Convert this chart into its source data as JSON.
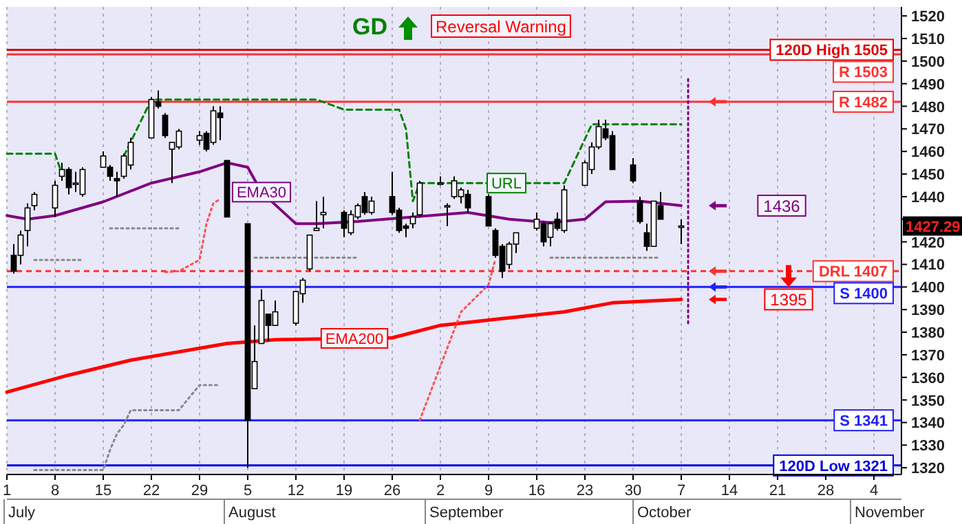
{
  "chart_data": {
    "type": "candlestick",
    "x": [
      "--07-02",
      "--07-03",
      "--07-04",
      "--07-05",
      "--07-08",
      "--07-09",
      "--07-10",
      "--07-11",
      "--07-12",
      "--07-15",
      "--07-16",
      "--07-17",
      "--07-18",
      "--07-19",
      "--07-22",
      "--07-23",
      "--07-24",
      "--07-25",
      "--07-26",
      "--07-29",
      "--07-30",
      "--07-31",
      "--08-01",
      "--08-02",
      "--08-05",
      "--08-06",
      "--08-07",
      "--08-08",
      "--08-09",
      "--08-12",
      "--08-13",
      "--08-14",
      "--08-15",
      "--08-16",
      "--08-19",
      "--08-20",
      "--08-21",
      "--08-22",
      "--08-23",
      "--08-26",
      "--08-27",
      "--08-28",
      "--08-29",
      "--08-30",
      "--09-02",
      "--09-03",
      "--09-04",
      "--09-05",
      "--09-06",
      "--09-09",
      "--09-10",
      "--09-11",
      "--09-12",
      "--09-13",
      "--09-16",
      "--09-17",
      "--09-18",
      "--09-19",
      "--09-20",
      "--09-23",
      "--09-24",
      "--09-25",
      "--09-26",
      "--09-27",
      "--09-30",
      "--10-01",
      "--10-02",
      "--10-03",
      "--10-04",
      "--10-07"
    ],
    "ohlc": [
      [
        1414,
        1419,
        1406,
        1407
      ],
      [
        1414,
        1425,
        1410,
        1423
      ],
      [
        1425,
        1437,
        1418,
        1435
      ],
      [
        1436,
        1442,
        1434,
        1441
      ],
      [
        1435,
        1447,
        1431,
        1445
      ],
      [
        1449,
        1455,
        1447,
        1452
      ],
      [
        1452,
        1453,
        1441,
        1444
      ],
      [
        1446,
        1451,
        1442,
        1446
      ],
      [
        1441,
        1453,
        1440,
        1452
      ],
      [
        1453,
        1460,
        1453,
        1458
      ],
      [
        1453,
        1454,
        1447,
        1449
      ],
      [
        1448,
        1451,
        1440,
        1447
      ],
      [
        1449,
        1459,
        1448,
        1458
      ],
      [
        1454,
        1466,
        1452,
        1464
      ],
      [
        1466,
        1484,
        1466,
        1483
      ],
      [
        1482,
        1487,
        1479,
        1480
      ],
      [
        1476,
        1477,
        1466,
        1467
      ],
      [
        1461,
        1464,
        1446,
        1464
      ],
      [
        1462,
        1470,
        1461,
        1469
      ],
      [
        1465,
        1469,
        1463,
        1467
      ],
      [
        1468,
        1469,
        1460,
        1461
      ],
      [
        1464,
        1480,
        1463,
        1478
      ],
      [
        1477,
        1480,
        1465,
        1475
      ],
      [
        1456,
        1456,
        1431,
        1431
      ],
      [
        1428,
        1428,
        1320,
        1341
      ],
      [
        1355,
        1383,
        1355,
        1367
      ],
      [
        1375,
        1399,
        1375,
        1394
      ],
      [
        1388,
        1388,
        1376,
        1383
      ],
      [
        1383,
        1394,
        1383,
        1389
      ],
      [
        1384,
        1398,
        1383,
        1398
      ],
      [
        1397,
        1404,
        1393,
        1403
      ],
      [
        1408,
        1423,
        1407,
        1423
      ],
      [
        1425,
        1438,
        1425,
        1426
      ],
      [
        1432,
        1440,
        1426,
        1433
      ],
      [
        1433,
        1434,
        1422,
        1426
      ],
      [
        1424,
        1434,
        1423,
        1432
      ],
      [
        1431,
        1437,
        1430,
        1436
      ],
      [
        1440,
        1442,
        1432,
        1433
      ],
      [
        1433,
        1440,
        1432,
        1438
      ],
      [
        1440,
        1451,
        1432,
        1433
      ],
      [
        1434,
        1435,
        1424,
        1425
      ],
      [
        1427,
        1428,
        1422,
        1426
      ],
      [
        1428,
        1433,
        1426,
        1431
      ],
      [
        1432,
        1447,
        1431,
        1446
      ],
      [
        1446,
        1449,
        1445,
        1446
      ],
      [
        1436,
        1437,
        1427,
        1436
      ],
      [
        1440,
        1449,
        1439,
        1447
      ],
      [
        1440,
        1444,
        1437,
        1443
      ],
      [
        1441,
        1443,
        1433,
        1435
      ],
      [
        1440,
        1441,
        1427,
        1427
      ],
      [
        1425,
        1426,
        1413,
        1414
      ],
      [
        1418,
        1419,
        1404,
        1407
      ],
      [
        1410,
        1420,
        1408,
        1419
      ],
      [
        1419,
        1424,
        1415,
        1424
      ],
      [
        1426,
        1433,
        1425,
        1430
      ],
      [
        1428,
        1429,
        1418,
        1420
      ],
      [
        1422,
        1429,
        1418,
        1428
      ],
      [
        1430,
        1433,
        1425,
        1426
      ],
      [
        1425,
        1445,
        1424,
        1443
      ],
      [
        1445,
        1456,
        1445,
        1455
      ],
      [
        1452,
        1464,
        1450,
        1462
      ],
      [
        1462,
        1474,
        1461,
        1471
      ],
      [
        1470,
        1474,
        1465,
        1466
      ],
      [
        1467,
        1469,
        1452,
        1452
      ],
      [
        1454,
        1457,
        1446,
        1447
      ],
      [
        1438,
        1440,
        1428,
        1429
      ],
      [
        1424,
        1428,
        1416,
        1418
      ],
      [
        1418,
        1438,
        1418,
        1438
      ],
      [
        1436,
        1442,
        1430,
        1430
      ],
      [
        1427,
        1430,
        1419,
        1427
      ]
    ],
    "series": [
      {
        "name": "EMA30",
        "type": "line",
        "color": "#800080",
        "line_style": "solid",
        "x": [
          "--07-01",
          "--07-04",
          "--07-08",
          "--07-15",
          "--07-22",
          "--07-29",
          "--08-02",
          "--08-05",
          "--08-07",
          "--08-12",
          "--08-15",
          "--08-21",
          "--08-29",
          "--09-06",
          "--09-12",
          "--09-18",
          "--09-23",
          "--09-26",
          "--10-01",
          "--10-07"
        ],
        "values": [
          1431.6,
          1430,
          1431.6,
          1437.7,
          1446,
          1451,
          1455,
          1453,
          1442,
          1428,
          1428,
          1429,
          1431,
          1433,
          1430,
          1428.5,
          1430,
          1437.7,
          1438,
          1436
        ]
      },
      {
        "name": "EMA200",
        "type": "line",
        "color": "#ff0000",
        "line_style": "solid",
        "x": [
          "--07-01",
          "--07-10",
          "--07-19",
          "--08-02",
          "--08-09",
          "--08-15",
          "--08-26",
          "--09-02",
          "--09-11",
          "--09-20",
          "--09-27",
          "--10-07"
        ],
        "values": [
          1353.5,
          1361,
          1367.6,
          1375,
          1376.7,
          1377,
          1377.5,
          1383,
          1386,
          1389,
          1393,
          1394.5
        ]
      },
      {
        "name": "URL",
        "type": "line",
        "color": "#008000",
        "line_style": "dashed",
        "x": [
          "--07-01",
          "--07-08",
          "--07-09",
          "--07-12",
          "--07-18",
          "--07-22",
          "--08-15",
          "--08-19",
          "--08-27",
          "--08-28",
          "--08-29",
          "--08-30",
          "--09-20",
          "--09-24",
          "--10-07"
        ],
        "values": [
          1459,
          1459,
          1450,
          null,
          1458,
          1483,
          1483,
          1478.5,
          1478.5,
          1470,
          1438,
          1446,
          1446,
          1472,
          1472
        ]
      },
      {
        "type": "line",
        "color": "#888888",
        "line_style": "dotted",
        "x": [
          "--07-05",
          "--07-12",
          "--07-15",
          "--07-16",
          "--07-26",
          "--08-01",
          "--08-06",
          "--08-21",
          "--09-02",
          "--09-18",
          "--10-04"
        ],
        "values": [
          1412,
          1412,
          null,
          1426,
          1426,
          null,
          1413,
          1413,
          null,
          1413,
          1413
        ]
      },
      {
        "type": "line",
        "color": "#888888",
        "line_style": "dotted",
        "x": [
          "--07-05",
          "--07-15",
          "--07-16",
          "--07-17",
          "--07-18",
          "--07-19",
          "--07-26",
          "--07-29",
          "--08-01"
        ],
        "values": [
          1319,
          1319,
          1328,
          1335,
          1339,
          1345.5,
          1345.5,
          1356.6,
          1356.6
        ]
      },
      {
        "type": "line",
        "color": "#ff5050",
        "line_style": "dotted",
        "x": [
          "--07-24",
          "--07-26",
          "--07-29",
          "--07-30",
          "--07-31",
          "--08-01",
          "--08-02",
          "--08-16",
          "--08-30",
          "--09-03",
          "--09-05",
          "--09-09",
          "--09-10"
        ],
        "values": [
          1406.6,
          1407,
          1412,
          1428,
          1437,
          1439,
          null,
          null,
          1341,
          1373,
          1389,
          1401,
          1412.5
        ]
      },
      {
        "type": "line",
        "color": "#800080",
        "line_style": "dotted",
        "x": [
          "--10-08",
          "--10-08"
        ],
        "values": [
          1384,
          1492
        ]
      }
    ],
    "xlim": [
      "--07-01",
      "--11-08"
    ],
    "xticks": [
      {
        "value": "--07-01",
        "label": "1"
      },
      {
        "value": "--07-08",
        "label": "8"
      },
      {
        "value": "--07-15",
        "label": "15"
      },
      {
        "value": "--07-22",
        "label": "22"
      },
      {
        "value": "--07-29",
        "label": "29"
      },
      {
        "value": "--08-05",
        "label": "5"
      },
      {
        "value": "--08-12",
        "label": "12"
      },
      {
        "value": "--08-19",
        "label": "19"
      },
      {
        "value": "--08-26",
        "label": "26"
      },
      {
        "value": "--09-02",
        "label": "2"
      },
      {
        "value": "--09-09",
        "label": "9"
      },
      {
        "value": "--09-16",
        "label": "16"
      },
      {
        "value": "--09-23",
        "label": "23"
      },
      {
        "value": "--09-30",
        "label": "30"
      },
      {
        "value": "--10-07",
        "label": "7"
      },
      {
        "value": "--10-14",
        "label": "14"
      },
      {
        "value": "--10-21",
        "label": "21"
      },
      {
        "value": "--10-28",
        "label": "28"
      },
      {
        "value": "--11-04",
        "label": "4"
      }
    ],
    "ylim": [
      1317,
      1524
    ],
    "yticks": [
      1320,
      1330,
      1340,
      1350,
      1360,
      1370,
      1380,
      1390,
      1400,
      1410,
      1420,
      {
        "value": 1430,
        "label": null
      },
      1440,
      1450,
      1460,
      1470,
      1480,
      1490,
      1500,
      1510,
      1520
    ],
    "grid": "x",
    "ref_lines": [
      {
        "axis": "y",
        "value": 1505,
        "label": "120D High 1505",
        "color": "#e00000",
        "line_style": "solid"
      },
      {
        "axis": "y",
        "value": 1503,
        "label": "R 1503",
        "color": "#ff3030",
        "line_style": "solid"
      },
      {
        "axis": "y",
        "value": 1482,
        "label": "R 1482",
        "color": "#ff3030",
        "line_style": "solid"
      },
      {
        "axis": "y",
        "value": 1407,
        "label": "DRL 1407",
        "color": "#ff3030",
        "line_style": "dashed"
      },
      {
        "axis": "y",
        "value": 1400,
        "label": "S 1400",
        "color": "#2020ff",
        "line_style": "solid"
      },
      {
        "axis": "y",
        "value": 1341,
        "label": "S 1341",
        "color": "#2020ff",
        "line_style": "solid"
      },
      {
        "axis": "y",
        "value": 1321,
        "label": "120D Low 1321",
        "color": "#0000e0",
        "line_style": "solid"
      }
    ],
    "annotations": [
      "GD",
      "Reversal Warning",
      "1436",
      "1395",
      "1427.29",
      "July",
      "August",
      "September",
      "October",
      "November"
    ]
  }
}
